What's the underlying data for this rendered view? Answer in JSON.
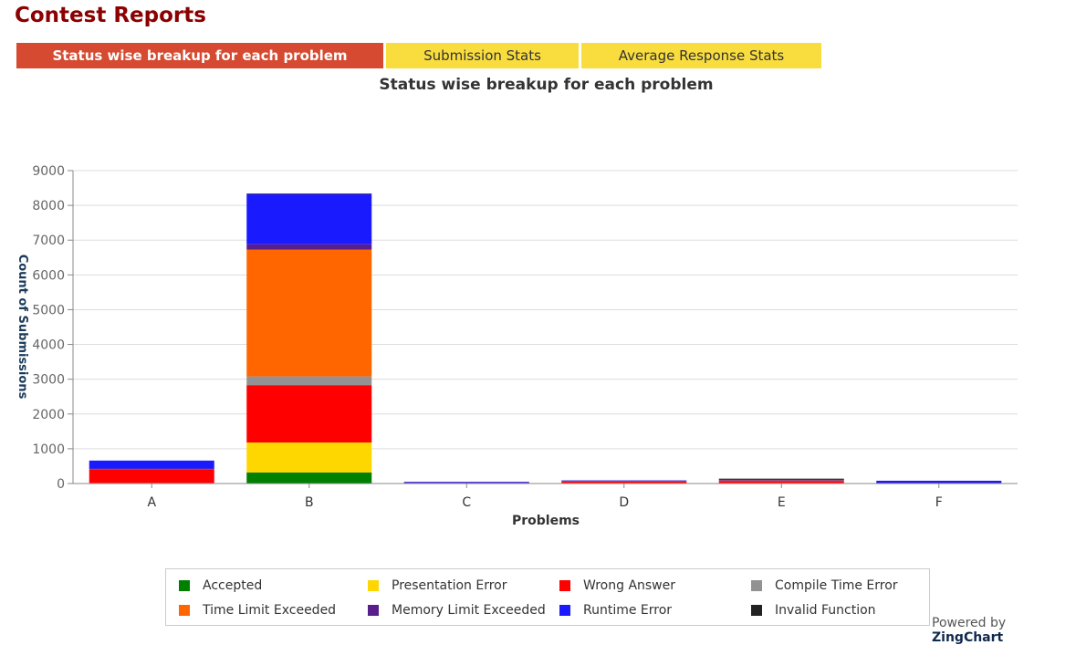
{
  "page": {
    "title": "Contest Reports"
  },
  "tabs": [
    {
      "label": "Status wise breakup for each problem",
      "active": true
    },
    {
      "label": "Submission Stats",
      "active": false
    },
    {
      "label": "Average Response Stats",
      "active": false
    }
  ],
  "footer": {
    "powered_prefix": "Powered by",
    "powered_brand": "ZingChart"
  },
  "chart_data": {
    "type": "bar",
    "stacked": true,
    "title": "Status wise breakup for each problem",
    "xlabel": "Problems",
    "ylabel": "Count of Submissions",
    "categories": [
      "A",
      "B",
      "C",
      "D",
      "E",
      "F"
    ],
    "ylim": [
      0,
      9000
    ],
    "yticks": [
      0,
      1000,
      2000,
      3000,
      4000,
      5000,
      6000,
      7000,
      8000,
      9000
    ],
    "grid": true,
    "legend_position": "bottom",
    "series": [
      {
        "name": "Accepted",
        "color": "#008000",
        "values": [
          10,
          320,
          5,
          10,
          10,
          5
        ]
      },
      {
        "name": "Presentation Error",
        "color": "#ffd700",
        "values": [
          5,
          860,
          2,
          5,
          5,
          2
        ]
      },
      {
        "name": "Wrong Answer",
        "color": "#ff0000",
        "values": [
          400,
          1650,
          15,
          40,
          60,
          10
        ]
      },
      {
        "name": "Compile Time Error",
        "color": "#929292",
        "values": [
          5,
          250,
          3,
          10,
          10,
          3
        ]
      },
      {
        "name": "Time Limit Exceeded",
        "color": "#ff6600",
        "values": [
          5,
          3650,
          2,
          5,
          10,
          2
        ]
      },
      {
        "name": "Memory Limit Exceeded",
        "color": "#5a1e8c",
        "values": [
          5,
          150,
          3,
          5,
          5,
          3
        ]
      },
      {
        "name": "Runtime Error",
        "color": "#1a1aff",
        "values": [
          230,
          1440,
          20,
          15,
          30,
          55
        ]
      },
      {
        "name": "Invalid Function",
        "color": "#222222",
        "values": [
          0,
          20,
          0,
          0,
          10,
          0
        ]
      }
    ]
  }
}
